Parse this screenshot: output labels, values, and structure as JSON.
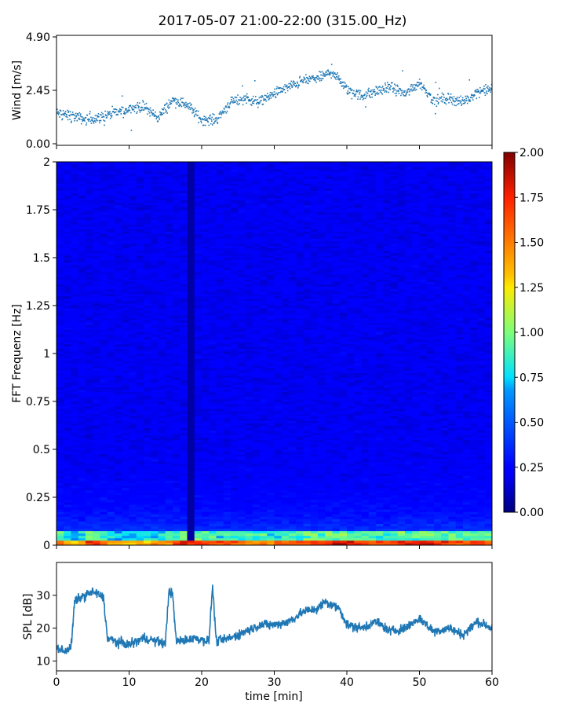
{
  "title": "2017-05-07 21:00-22:00 (315.00_Hz)",
  "colors": {
    "series": "#1f77b4",
    "axis": "#000000",
    "colormap": "jet",
    "spectrogram_floor": "#0a1fd8"
  },
  "chart_data": [
    {
      "id": "wind",
      "type": "scatter",
      "ylabel": "Wind [m/s]",
      "xlim": [
        0,
        60
      ],
      "ylim": [
        0,
        4.9
      ],
      "yticks": [
        0.0,
        2.45,
        4.9
      ],
      "ytick_labels": [
        "0.00",
        "2.45",
        "4.90"
      ],
      "grid": false,
      "series": [
        {
          "x": [
            0,
            2,
            4,
            6,
            8,
            10,
            12,
            14,
            16,
            18,
            20,
            22,
            24,
            26,
            28,
            30,
            32,
            34,
            36,
            38,
            40,
            42,
            44,
            46,
            48,
            50,
            52,
            54,
            56,
            58,
            60
          ],
          "y": [
            1.4,
            1.3,
            1.1,
            1.2,
            1.4,
            1.6,
            1.7,
            1.2,
            2.0,
            1.8,
            1.1,
            1.1,
            1.9,
            2.1,
            1.9,
            2.3,
            2.6,
            2.9,
            3.0,
            3.3,
            2.5,
            2.2,
            2.4,
            2.6,
            2.3,
            2.8,
            2.0,
            2.1,
            1.9,
            2.4,
            2.5
          ]
        }
      ]
    },
    {
      "id": "spectrogram",
      "type": "heatmap",
      "ylabel": "FFT Frequenz [Hz]",
      "xlim": [
        0,
        60
      ],
      "ylim": [
        0,
        2
      ],
      "yticks": [
        0,
        0.25,
        0.5,
        0.75,
        1,
        1.25,
        1.5,
        1.75,
        2
      ],
      "ytick_labels": [
        "0",
        "0.25",
        "0.5",
        "0.75",
        "1",
        "1.25",
        "1.5",
        "1.75",
        "2"
      ],
      "colorbar": {
        "range": [
          0.0,
          2.0
        ],
        "ticks": [
          0.0,
          0.25,
          0.5,
          0.75,
          1.0,
          1.25,
          1.5,
          1.75,
          2.0
        ],
        "tick_labels": [
          "0.00",
          "0.25",
          "0.50",
          "0.75",
          "1.00",
          "1.25",
          "1.50",
          "1.75",
          "2.00"
        ]
      },
      "low_frequency_intensity": {
        "x": [
          0,
          3,
          5,
          8,
          12,
          15,
          18,
          20,
          24,
          28,
          32,
          36,
          40,
          44,
          48,
          52,
          56,
          60
        ],
        "value": [
          1.6,
          1.2,
          1.9,
          1.3,
          1.4,
          1.5,
          1.8,
          1.7,
          1.6,
          1.5,
          1.6,
          1.7,
          1.8,
          1.6,
          1.7,
          1.8,
          1.6,
          1.7
        ]
      },
      "background_level": 0.2
    },
    {
      "id": "spl",
      "type": "line",
      "ylabel": "SPL [dB]",
      "xlabel": "time [min]",
      "xlim": [
        0,
        60
      ],
      "ylim": [
        7,
        40
      ],
      "xticks": [
        0,
        10,
        20,
        30,
        40,
        50,
        60
      ],
      "xtick_labels": [
        "0",
        "10",
        "20",
        "30",
        "40",
        "50",
        "60"
      ],
      "yticks": [
        10,
        20,
        30
      ],
      "ytick_labels": [
        "10",
        "20",
        "30"
      ],
      "grid": false,
      "series": [
        {
          "x": [
            0,
            1,
            2,
            2.5,
            3,
            4,
            5,
            6,
            6.5,
            7,
            8,
            10,
            12,
            14,
            15,
            15.5,
            16,
            16.5,
            17,
            19,
            21,
            21.5,
            22,
            24,
            26,
            28,
            30,
            32,
            34,
            36,
            37,
            38,
            39,
            40,
            42,
            44,
            46,
            48,
            50,
            52,
            54,
            56,
            58,
            60
          ],
          "y": [
            14,
            13,
            14,
            28,
            29,
            30,
            31,
            30,
            29,
            17,
            16,
            15,
            17,
            16,
            15,
            32,
            30,
            16,
            16,
            17,
            16,
            33,
            16,
            17,
            19,
            21,
            21,
            22,
            25,
            26,
            28,
            27,
            26,
            21,
            20,
            22,
            19,
            20,
            23,
            19,
            20,
            18,
            22,
            20
          ]
        }
      ]
    }
  ]
}
